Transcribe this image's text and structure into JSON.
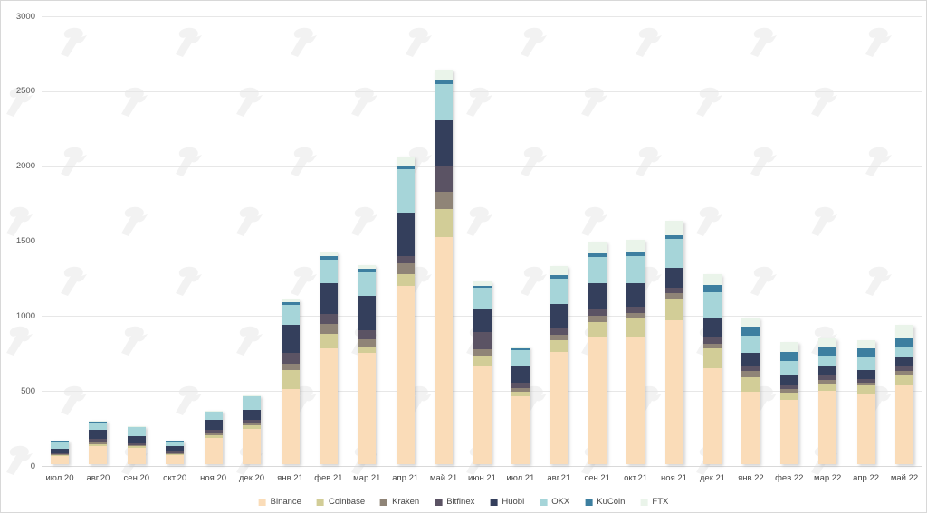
{
  "chart_data": {
    "type": "bar",
    "stacked": true,
    "title": "",
    "xlabel": "",
    "ylabel": "",
    "ylim": [
      0,
      3000
    ],
    "yticks": [
      0,
      500,
      1000,
      1500,
      2000,
      2500,
      3000
    ],
    "grid": true,
    "legend_position": "bottom",
    "categories": [
      "июл.20",
      "авг.20",
      "сен.20",
      "окт.20",
      "ноя.20",
      "дек.20",
      "янв.21",
      "фев.21",
      "мар.21",
      "апр.21",
      "май.21",
      "июн.21",
      "июл.21",
      "авг.21",
      "сен.21",
      "окт.21",
      "ноя.21",
      "дек.21",
      "янв.22",
      "фев.22",
      "мар.22",
      "апр.22",
      "май.22"
    ],
    "series": [
      {
        "name": "Binance",
        "color": "#fadcb8",
        "values": [
          55,
          120,
          110,
          60,
          175,
          235,
          500,
          775,
          745,
          1190,
          1515,
          655,
          450,
          750,
          845,
          850,
          960,
          640,
          485,
          430,
          490,
          470,
          525
        ]
      },
      {
        "name": "Coinbase",
        "color": "#d2cd97",
        "values": [
          5,
          15,
          10,
          8,
          20,
          24,
          125,
          95,
          40,
          80,
          185,
          65,
          30,
          75,
          100,
          125,
          140,
          130,
          95,
          45,
          50,
          55,
          70
        ]
      },
      {
        "name": "Kraken",
        "color": "#8f8477",
        "values": [
          5,
          10,
          5,
          4,
          10,
          12,
          45,
          65,
          50,
          70,
          115,
          45,
          25,
          40,
          45,
          35,
          40,
          30,
          40,
          25,
          20,
          20,
          25
        ]
      },
      {
        "name": "Bitfinex",
        "color": "#5b5364",
        "values": [
          10,
          25,
          15,
          12,
          25,
          24,
          70,
          70,
          60,
          50,
          180,
          115,
          40,
          45,
          40,
          40,
          40,
          50,
          30,
          25,
          30,
          25,
          30
        ]
      },
      {
        "name": "Huobi",
        "color": "#343f5c",
        "values": [
          30,
          60,
          45,
          35,
          65,
          65,
          190,
          200,
          230,
          290,
          300,
          155,
          110,
          160,
          180,
          160,
          130,
          120,
          90,
          75,
          60,
          60,
          65
        ]
      },
      {
        "name": "OKX",
        "color": "#a6d5d9",
        "values": [
          45,
          50,
          60,
          33,
          55,
          90,
          130,
          160,
          155,
          290,
          240,
          145,
          105,
          170,
          170,
          180,
          195,
          175,
          120,
          90,
          70,
          80,
          65
        ]
      },
      {
        "name": "KuCoin",
        "color": "#3d7fa0",
        "values": [
          5,
          5,
          5,
          3,
          3,
          5,
          20,
          25,
          25,
          25,
          30,
          10,
          15,
          20,
          25,
          25,
          25,
          50,
          60,
          60,
          60,
          60,
          60
        ]
      },
      {
        "name": "FTX",
        "color": "#eaf4ea",
        "values": [
          5,
          5,
          5,
          2,
          2,
          5,
          20,
          25,
          25,
          60,
          65,
          30,
          10,
          60,
          80,
          80,
          95,
          75,
          60,
          65,
          60,
          60,
          90
        ]
      }
    ]
  },
  "watermark": {
    "name": "forklog-logo",
    "color": "#f2f2f2"
  }
}
